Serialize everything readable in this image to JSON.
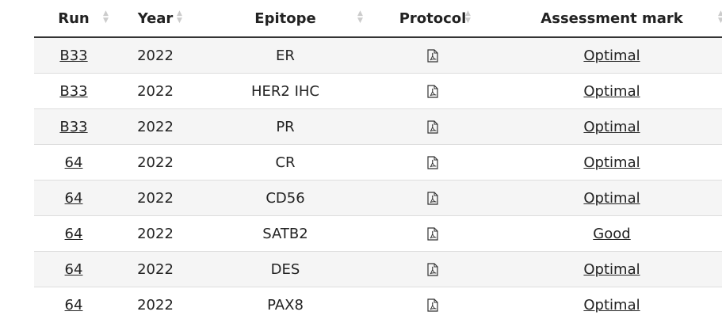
{
  "headers": [
    "Run",
    "Year",
    "Epitope",
    "Protocol",
    "Assessment mark"
  ],
  "rows": [
    {
      "run": "B33",
      "year": "2022",
      "epitope": "ER",
      "mark": "Optimal"
    },
    {
      "run": "B33",
      "year": "2022",
      "epitope": "HER2 IHC",
      "mark": "Optimal"
    },
    {
      "run": "B33",
      "year": "2022",
      "epitope": "PR",
      "mark": "Optimal"
    },
    {
      "run": "64",
      "year": "2022",
      "epitope": "CR",
      "mark": "Optimal"
    },
    {
      "run": "64",
      "year": "2022",
      "epitope": "CD56",
      "mark": "Optimal"
    },
    {
      "run": "64",
      "year": "2022",
      "epitope": "SATB2",
      "mark": "Good"
    },
    {
      "run": "64",
      "year": "2022",
      "epitope": "DES",
      "mark": "Optimal"
    },
    {
      "run": "64",
      "year": "2022",
      "epitope": "PAX8",
      "mark": "Optimal"
    }
  ],
  "protocol_icon": "pdf-file-icon",
  "sort_icon": "sort-arrows-icon"
}
